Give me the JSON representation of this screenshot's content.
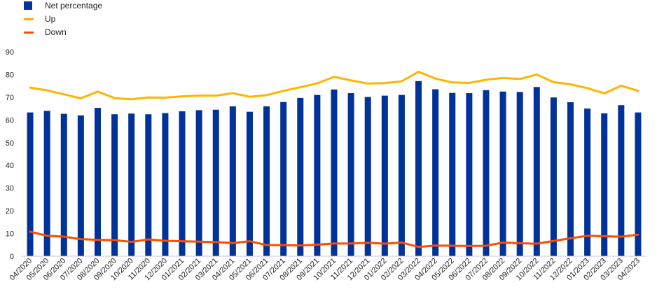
{
  "chart_data": {
    "type": "bar",
    "title": "",
    "xlabel": "",
    "ylabel": "",
    "ylim": [
      0,
      90
    ],
    "yticks": [
      0,
      10,
      20,
      30,
      40,
      50,
      60,
      70,
      80,
      90
    ],
    "grid": false,
    "legend_position": "top-left",
    "categories": [
      "04/2020",
      "05/2020",
      "06/2020",
      "07/2020",
      "08/2020",
      "09/2020",
      "10/2020",
      "11/2020",
      "12/2020",
      "01/2021",
      "02/2021",
      "03/2021",
      "04/2021",
      "05/2021",
      "06/2021",
      "07/2021",
      "08/2021",
      "09/2021",
      "10/2021",
      "11/2021",
      "12/2021",
      "01/2022",
      "02/2022",
      "03/2022",
      "04/2022",
      "05/2022",
      "06/2022",
      "07/2022",
      "08/2022",
      "09/2022",
      "10/2022",
      "11/2022",
      "12/2022",
      "01/2023",
      "02/2023",
      "03/2023",
      "04/2023"
    ],
    "series": [
      {
        "name": "Net percentage",
        "kind": "bar",
        "color": "#003299",
        "values": [
          63.3,
          64.0,
          62.7,
          62.0,
          65.3,
          62.5,
          62.8,
          62.5,
          63.0,
          63.8,
          64.3,
          64.5,
          66.0,
          63.6,
          66.0,
          67.9,
          69.7,
          71.0,
          73.4,
          71.8,
          70.1,
          70.7,
          71.0,
          77.1,
          73.5,
          71.9,
          71.8,
          73.1,
          72.5,
          72.3,
          74.5,
          69.9,
          67.8,
          65.0,
          62.9,
          66.5,
          63.3
        ]
      },
      {
        "name": "Up",
        "kind": "line",
        "color": "#ffb400",
        "values": [
          74.2,
          73.0,
          71.3,
          69.5,
          72.5,
          69.6,
          69.1,
          69.9,
          69.8,
          70.4,
          70.7,
          70.7,
          71.8,
          70.2,
          70.9,
          72.8,
          74.4,
          76.1,
          79.0,
          77.4,
          76.0,
          76.2,
          77.0,
          81.2,
          78.2,
          76.5,
          76.3,
          77.7,
          78.5,
          78.0,
          80.0,
          76.6,
          75.7,
          74.0,
          71.7,
          75.1,
          72.8
        ]
      },
      {
        "name": "Down",
        "kind": "line",
        "color": "#ff4b00",
        "values": [
          10.8,
          9.0,
          8.6,
          7.5,
          7.2,
          7.1,
          6.3,
          7.4,
          6.8,
          6.6,
          6.4,
          6.2,
          5.8,
          6.6,
          4.9,
          4.9,
          4.7,
          5.1,
          5.6,
          5.6,
          5.9,
          5.5,
          6.0,
          4.1,
          4.7,
          4.6,
          4.5,
          4.6,
          6.0,
          5.7,
          5.5,
          6.7,
          7.9,
          9.0,
          8.8,
          8.6,
          9.5
        ]
      }
    ]
  }
}
